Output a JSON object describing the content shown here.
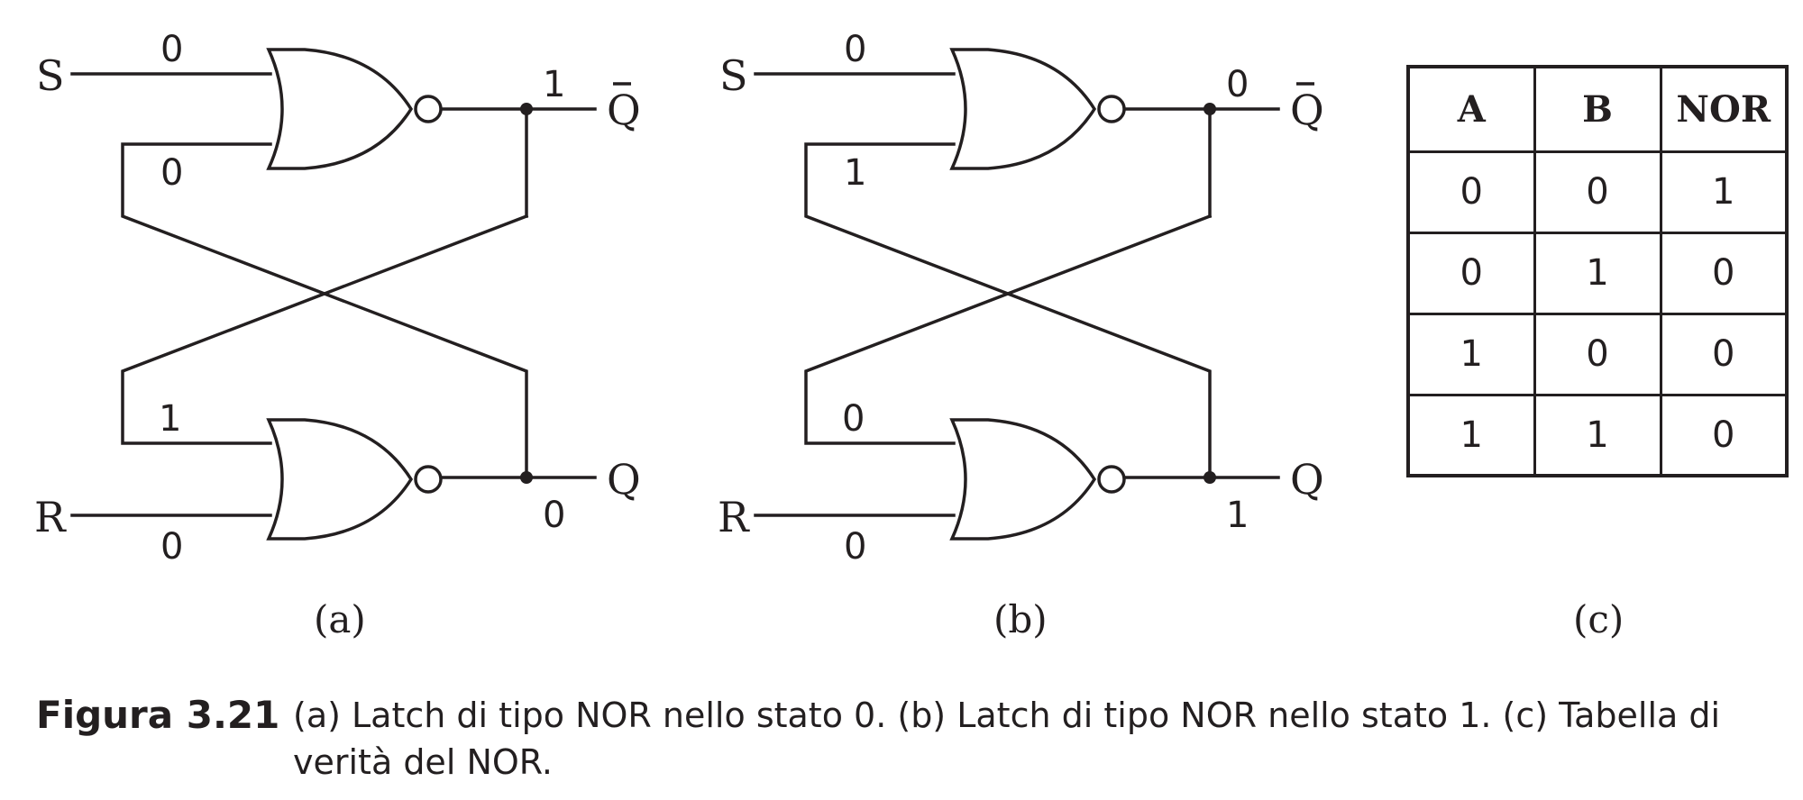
{
  "panels": [
    {
      "sublabel": "(a)",
      "inputs": {
        "S": "S",
        "R": "R"
      },
      "outputs": {
        "qbar": "Q",
        "q": "Q"
      },
      "values": {
        "s_in": "0",
        "top_feedback": "0",
        "qbar_out": "1",
        "bottom_feedback": "1",
        "r_in": "0",
        "q_out": "0"
      }
    },
    {
      "sublabel": "(b)",
      "inputs": {
        "S": "S",
        "R": "R"
      },
      "outputs": {
        "qbar": "Q",
        "q": "Q"
      },
      "values": {
        "s_in": "0",
        "top_feedback": "1",
        "qbar_out": "0",
        "bottom_feedback": "0",
        "r_in": "0",
        "q_out": "1"
      }
    }
  ],
  "truth_table": {
    "sublabel": "(c)",
    "headers": [
      "A",
      "B",
      "NOR"
    ],
    "rows": [
      [
        "0",
        "0",
        "1"
      ],
      [
        "0",
        "1",
        "0"
      ],
      [
        "1",
        "0",
        "0"
      ],
      [
        "1",
        "1",
        "0"
      ]
    ]
  },
  "caption": {
    "label": "Figura 3.21",
    "text": "(a) Latch di tipo NOR nello stato 0. (b) Latch di tipo NOR nello stato 1. (c) Tabella di verità del NOR."
  }
}
